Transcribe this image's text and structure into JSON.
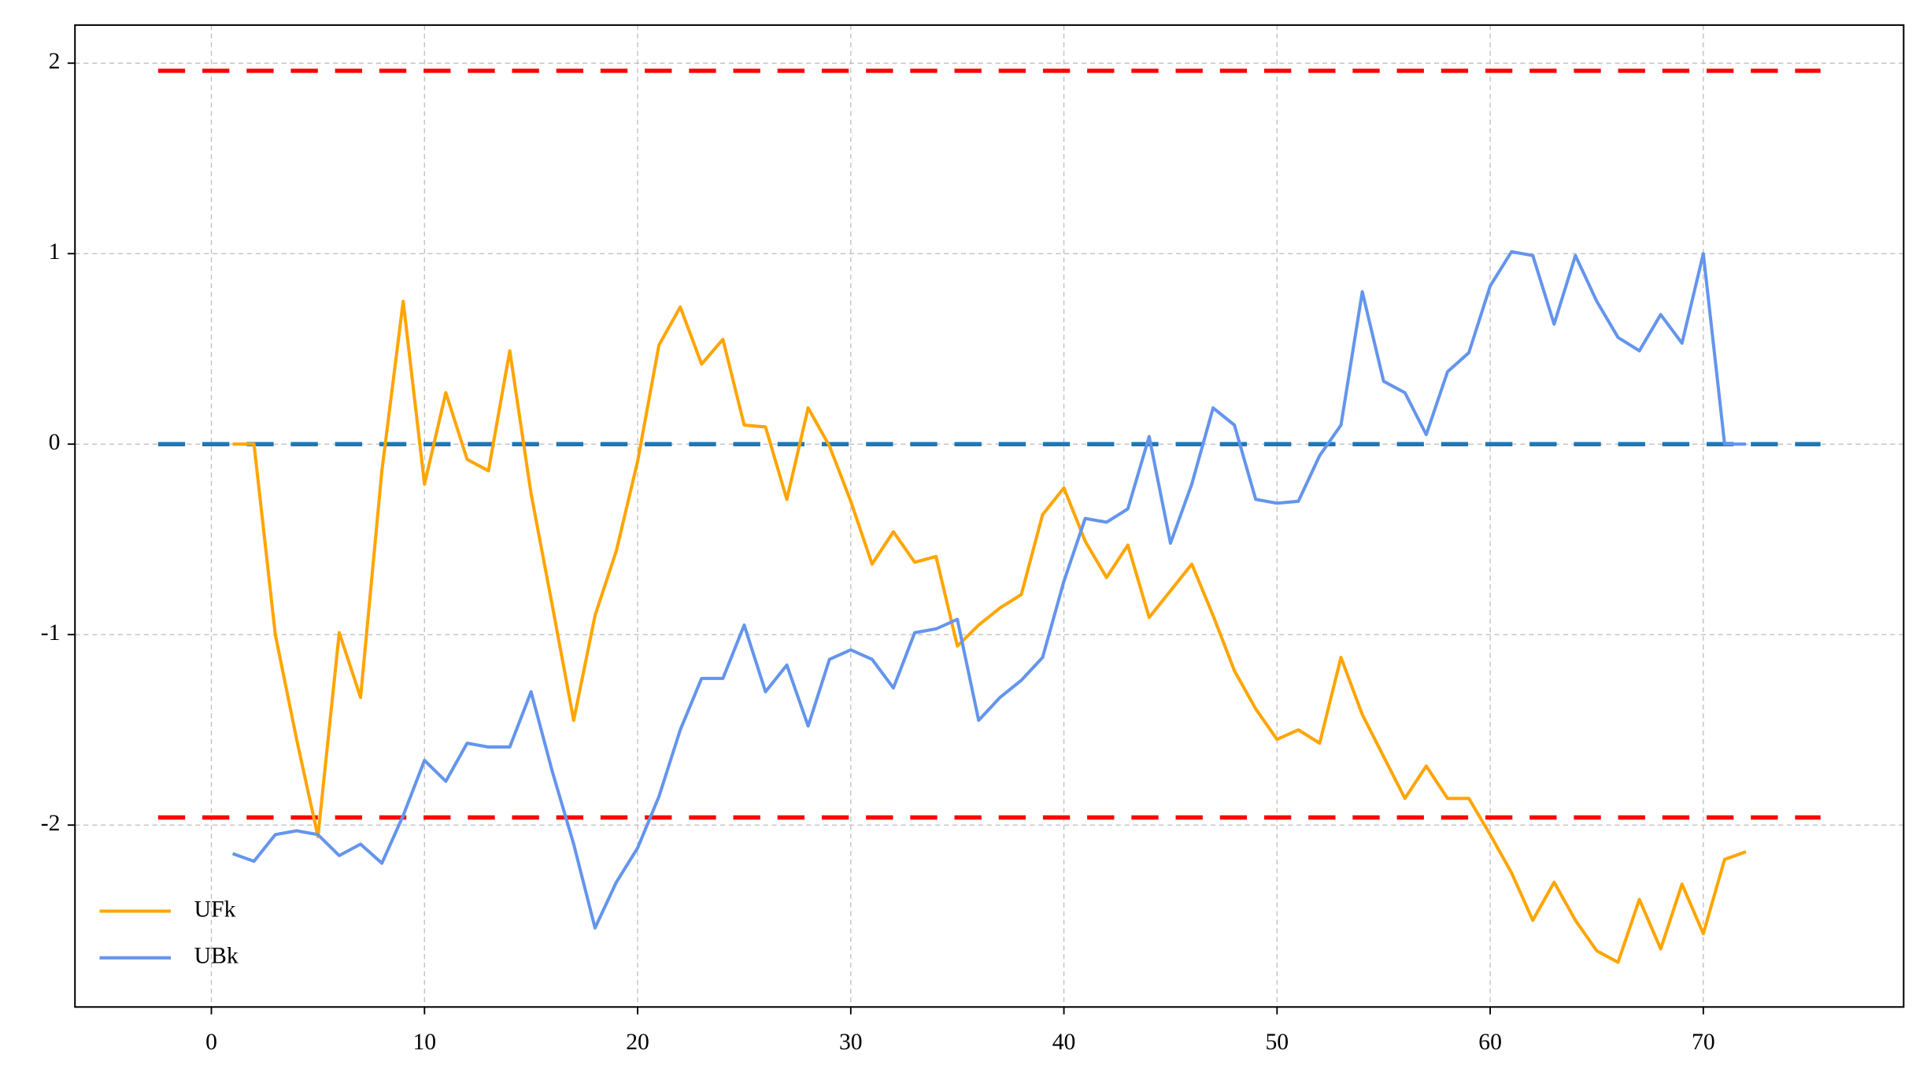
{
  "chart_data": {
    "type": "line",
    "x": [
      1,
      2,
      3,
      4,
      5,
      6,
      7,
      8,
      9,
      10,
      11,
      12,
      13,
      14,
      15,
      16,
      17,
      18,
      19,
      20,
      21,
      22,
      23,
      24,
      25,
      26,
      27,
      28,
      29,
      30,
      31,
      32,
      33,
      34,
      35,
      36,
      37,
      38,
      39,
      40,
      41,
      42,
      43,
      44,
      45,
      46,
      47,
      48,
      49,
      50,
      51,
      52,
      53,
      54,
      55,
      56,
      57,
      58,
      59,
      60,
      61,
      62,
      63,
      64,
      65,
      66,
      67,
      68,
      69,
      70,
      71,
      72
    ],
    "series": [
      {
        "name": "UFk",
        "color": "#ffa500",
        "values": [
          0,
          0,
          -1.0,
          -1.55,
          -2.06,
          -0.99,
          -1.33,
          -0.14,
          0.75,
          -0.21,
          0.27,
          -0.08,
          -0.14,
          0.49,
          -0.26,
          -0.85,
          -1.45,
          -0.9,
          -0.56,
          -0.09,
          0.52,
          0.72,
          0.42,
          0.55,
          0.1,
          0.09,
          -0.29,
          0.19,
          -0.01,
          -0.3,
          -0.63,
          -0.46,
          -0.62,
          -0.59,
          -1.06,
          -0.95,
          -0.86,
          -0.79,
          -0.37,
          -0.23,
          -0.51,
          -0.7,
          -0.53,
          -0.91,
          -0.77,
          -0.63,
          -0.9,
          -1.19,
          -1.39,
          -1.55,
          -1.5,
          -1.57,
          -1.12,
          -1.42,
          -1.64,
          -1.86,
          -1.69,
          -1.86,
          -1.86,
          -2.05,
          -2.25,
          -2.5,
          -2.3,
          -2.5,
          -2.66,
          -2.72,
          -2.39,
          -2.65,
          -2.31,
          -2.57,
          -2.18,
          -2.14
        ]
      },
      {
        "name": "UBk",
        "color": "#6495ed",
        "values": [
          -2.15,
          -2.19,
          -2.05,
          -2.03,
          -2.05,
          -2.16,
          -2.1,
          -2.2,
          -1.95,
          -1.66,
          -1.77,
          -1.57,
          -1.59,
          -1.59,
          -1.3,
          -1.72,
          -2.1,
          -2.54,
          -2.3,
          -2.12,
          -1.85,
          -1.5,
          -1.23,
          -1.23,
          -0.95,
          -1.3,
          -1.16,
          -1.48,
          -1.13,
          -1.08,
          -1.13,
          -1.28,
          -0.99,
          -0.97,
          -0.92,
          -1.45,
          -1.33,
          -1.24,
          -1.12,
          -0.72,
          -0.39,
          -0.41,
          -0.34,
          0.04,
          -0.52,
          -0.21,
          0.19,
          0.1,
          -0.29,
          -0.31,
          -0.3,
          -0.06,
          0.1,
          0.8,
          0.33,
          0.27,
          0.05,
          0.38,
          0.48,
          0.83,
          1.01,
          0.99,
          0.63,
          0.99,
          0.75,
          0.56,
          0.49,
          0.68,
          0.53,
          1.0,
          0,
          0
        ]
      }
    ],
    "hlines": [
      {
        "y": 1.96,
        "xmin": -2.5,
        "xmax": 75.5,
        "color": "#ff0000"
      },
      {
        "y": -1.96,
        "xmin": -2.5,
        "xmax": 75.5,
        "color": "#ff0000"
      },
      {
        "y": 0,
        "xmin": -2.5,
        "xmax": 75.5,
        "color": "#1f77b4"
      }
    ],
    "xlim": [
      -6.4,
      79.4
    ],
    "ylim": [
      -2.955,
      2.2
    ],
    "xticks": [
      0,
      10,
      20,
      30,
      40,
      50,
      60,
      70
    ],
    "yticks": [
      -2,
      -1,
      0,
      1,
      2
    ],
    "grid": true,
    "legend": "lower left"
  }
}
